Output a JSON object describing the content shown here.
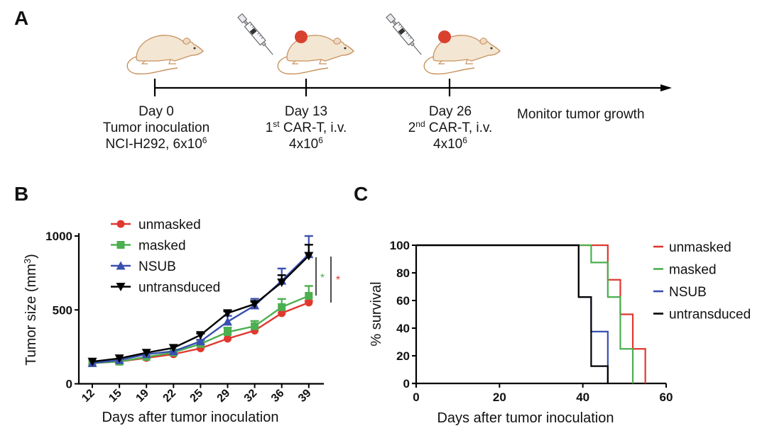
{
  "panels": {
    "a": {
      "letter": "A",
      "events": [
        {
          "day_label": "Day 0",
          "line2": "Tumor inoculation",
          "line3_base": "NCI-H292, 6x10",
          "line3_sup": "6",
          "icon": "mouse-icon"
        },
        {
          "day_label": "Day 13",
          "line2_pre": "1",
          "line2_sup": "st",
          "line2_post": " CAR-T, i.v.",
          "line3_base": "4x10",
          "line3_sup": "6",
          "icon": "mouse-tumor-syringe-icon"
        },
        {
          "day_label": "Day 26",
          "line2_pre": "2",
          "line2_sup": "nd",
          "line2_post": " CAR-T, i.v.",
          "line3_base": "4x10",
          "line3_sup": "6",
          "icon": "mouse-tumor-syringe-icon"
        }
      ],
      "end_label": "Monitor tumor growth"
    },
    "b": {
      "letter": "B"
    },
    "c": {
      "letter": "C"
    }
  },
  "colors": {
    "unmasked": "#e0382f",
    "masked": "#4caf50",
    "NSUB": "#3a4fb0",
    "untransduced": "#000000",
    "mouse_body": "#f3e6d3",
    "mouse_outline": "#c8925e",
    "tumor": "#d9412f"
  },
  "chart_data": [
    {
      "id": "B",
      "type": "line",
      "title": "",
      "xlabel": "Days after tumor inoculation",
      "ylabel": "Tumor size (mm3)",
      "ylabel_base": "Tumor size (mm",
      "ylabel_sup": "3",
      "ylabel_end": ")",
      "categories": [
        "12",
        "15",
        "19",
        "22",
        "25",
        "29",
        "32",
        "36",
        "39"
      ],
      "ylim": [
        0,
        1000
      ],
      "yticks": [
        0,
        500,
        1000
      ],
      "legend_position": "top-left",
      "series": [
        {
          "name": "unmasked",
          "marker": "circle",
          "values": [
            140,
            150,
            175,
            200,
            240,
            305,
            360,
            478,
            550
          ],
          "err_upper": [
            145,
            155,
            180,
            205,
            245,
            312,
            366,
            485,
            560
          ]
        },
        {
          "name": "masked",
          "marker": "square",
          "values": [
            140,
            150,
            182,
            212,
            270,
            350,
            390,
            519,
            595
          ],
          "err_upper": [
            146,
            157,
            190,
            220,
            280,
            380,
            425,
            574,
            662
          ]
        },
        {
          "name": "NSUB",
          "marker": "triangle-up",
          "values": [
            140,
            160,
            200,
            220,
            287,
            420,
            530,
            697,
            877
          ],
          "err_upper": [
            146,
            166,
            208,
            228,
            298,
            460,
            575,
            780,
            1000
          ]
        },
        {
          "name": "untransduced",
          "marker": "triangle-down",
          "values": [
            150,
            172,
            210,
            243,
            330,
            478,
            540,
            686,
            866
          ],
          "err_upper": [
            156,
            178,
            216,
            250,
            340,
            490,
            555,
            735,
            941
          ]
        }
      ],
      "annotations": [
        {
          "text": "*",
          "color_key": "masked",
          "comparison": "masked vs untransduced"
        },
        {
          "text": "*",
          "color_key": "unmasked",
          "comparison": "unmasked vs untransduced"
        }
      ]
    },
    {
      "id": "C",
      "type": "line",
      "subtype": "kaplan-meier step",
      "title": "",
      "xlabel": "Days after tumor inoculation",
      "ylabel": "% survival",
      "xlim": [
        0,
        60
      ],
      "ylim": [
        0,
        100
      ],
      "xticks": [
        0,
        20,
        40,
        60
      ],
      "yticks": [
        0,
        20,
        40,
        60,
        80,
        100
      ],
      "legend_position": "right",
      "series": [
        {
          "name": "unmasked",
          "steps": [
            [
              0,
              100
            ],
            [
              46,
              75
            ],
            [
              49,
              50
            ],
            [
              52,
              25
            ],
            [
              55,
              0
            ]
          ]
        },
        {
          "name": "masked",
          "steps": [
            [
              0,
              100
            ],
            [
              42,
              87.5
            ],
            [
              46,
              62.5
            ],
            [
              49,
              25
            ],
            [
              52,
              0
            ]
          ]
        },
        {
          "name": "NSUB",
          "steps": [
            [
              0,
              100
            ],
            [
              39,
              62.5
            ],
            [
              42,
              37.5
            ],
            [
              46,
              0
            ]
          ]
        },
        {
          "name": "untransduced",
          "steps": [
            [
              0,
              100
            ],
            [
              39,
              62.5
            ],
            [
              42,
              12.5
            ],
            [
              46,
              0
            ]
          ]
        }
      ]
    }
  ]
}
